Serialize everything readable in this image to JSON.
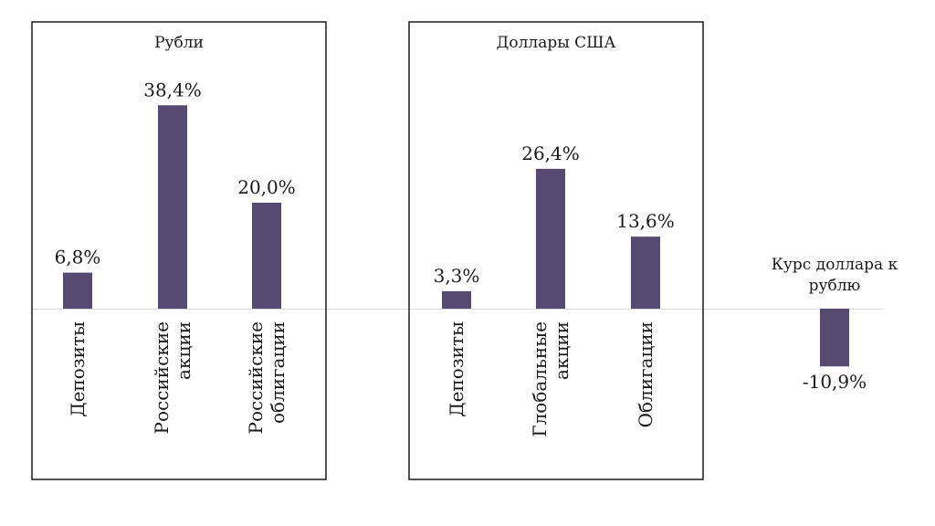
{
  "chart_data": [
    {
      "type": "bar",
      "title": "Рубли",
      "categories": [
        [
          "Депозиты"
        ],
        [
          "Российские",
          "акции"
        ],
        [
          "Российские",
          "облигации"
        ]
      ],
      "values": [
        6.8,
        38.4,
        20.0
      ],
      "value_labels": [
        "6,8%",
        "38,4%",
        "20,0%"
      ],
      "unit": "%",
      "color": "#574a72"
    },
    {
      "type": "bar",
      "title": "Доллары США",
      "categories": [
        [
          "Депозиты"
        ],
        [
          "Глобальные",
          "акции"
        ],
        [
          "Облигации"
        ]
      ],
      "values": [
        3.3,
        26.4,
        13.6
      ],
      "value_labels": [
        "3,3%",
        "26,4%",
        "13,6%"
      ],
      "unit": "%",
      "color": "#574a72"
    },
    {
      "type": "bar",
      "title": "",
      "categories": [
        [
          "Курс доллара к",
          "рублю"
        ]
      ],
      "values": [
        -10.9
      ],
      "value_labels": [
        "-10,9%"
      ],
      "unit": "%",
      "color": "#574a72"
    }
  ]
}
